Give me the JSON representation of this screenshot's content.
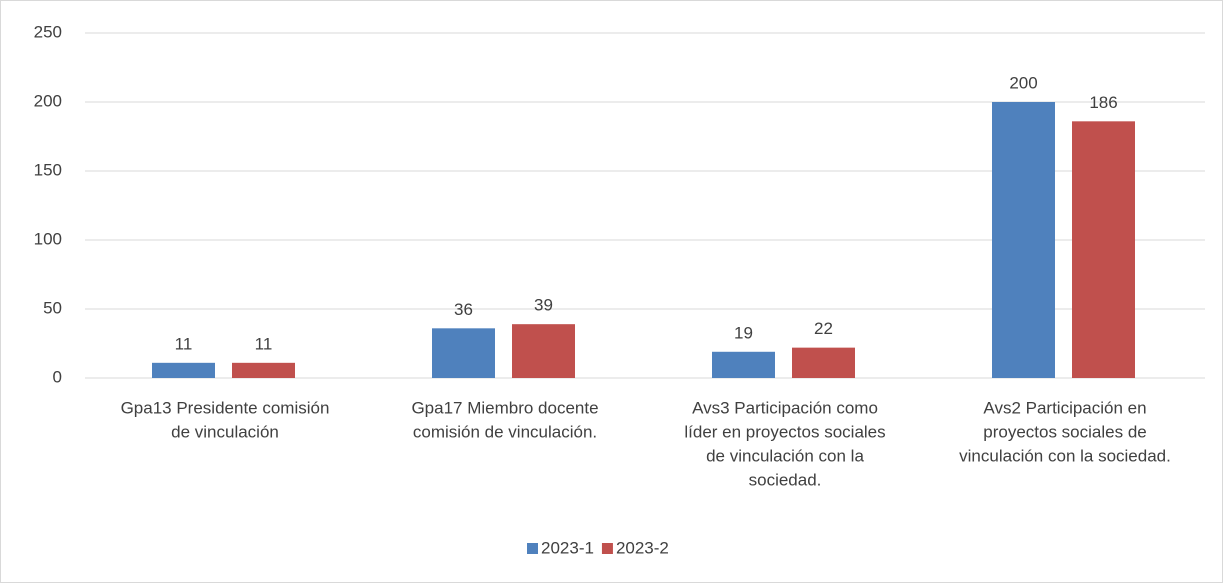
{
  "chart_data": {
    "type": "bar",
    "categories": [
      [
        "Gpa13 Presidente comisión",
        "de vinculación"
      ],
      [
        "Gpa17 Miembro docente",
        "comisión de vinculación."
      ],
      [
        "Avs3 Participación como",
        "líder en proyectos sociales",
        "de vinculación con la",
        "sociedad."
      ],
      [
        "Avs2 Participación en",
        "proyectos sociales de",
        "vinculación con la sociedad."
      ]
    ],
    "series": [
      {
        "name": "2023-1",
        "color": "#4f81bd",
        "values": [
          11,
          36,
          19,
          200
        ]
      },
      {
        "name": "2023-2",
        "color": "#c0504d",
        "values": [
          11,
          39,
          22,
          186
        ]
      }
    ],
    "ylim": [
      0,
      250
    ],
    "yticks": [
      0,
      50,
      100,
      150,
      200,
      250
    ],
    "grid": true,
    "legend": "bottom"
  }
}
